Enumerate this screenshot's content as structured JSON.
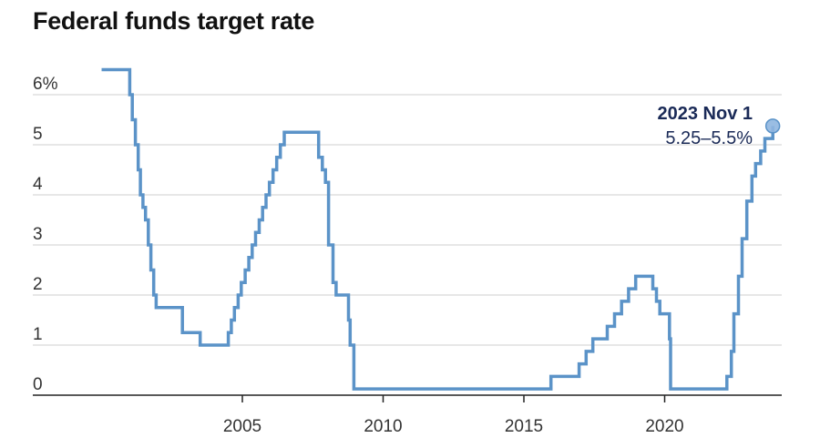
{
  "chart_data": {
    "type": "line",
    "title": "Federal funds target rate",
    "xlabel": "",
    "ylabel": "",
    "xlim": [
      1999.8,
      2024.5
    ],
    "ylim": [
      0,
      6.5
    ],
    "x_ticks": [
      2005,
      2010,
      2015,
      2020
    ],
    "x_tick_labels": [
      "2005",
      "2010",
      "2015",
      "2020"
    ],
    "y_ticks": [
      0,
      1,
      2,
      3,
      4,
      5,
      6
    ],
    "y_tick_labels": [
      "0",
      "1",
      "2",
      "3",
      "4",
      "5",
      "6%"
    ],
    "grid": true,
    "line_color": "#5b93c8",
    "series": [
      {
        "x": [
          2000.0,
          2001.0,
          2001.09,
          2001.2,
          2001.3,
          2001.38,
          2001.47,
          2001.56,
          2001.66,
          2001.75,
          2001.85,
          2001.94,
          2002.87,
          2003.5,
          2004.5,
          2004.61,
          2004.72,
          2004.85,
          2004.96,
          2005.1,
          2005.23,
          2005.35,
          2005.47,
          2005.6,
          2005.72,
          2005.84,
          2005.96,
          2006.09,
          2006.22,
          2006.35,
          2006.49,
          2007.71,
          2007.84,
          2007.95,
          2008.06,
          2008.22,
          2008.33,
          2008.77,
          2008.83,
          2008.96,
          2015.96,
          2016.96,
          2017.21,
          2017.45,
          2017.96,
          2018.22,
          2018.47,
          2018.72,
          2018.97,
          2019.58,
          2019.71,
          2019.83,
          2020.17,
          2020.21,
          2022.21,
          2022.37,
          2022.46,
          2022.62,
          2022.75,
          2022.92,
          2023.1,
          2023.23,
          2023.41,
          2023.56,
          2023.84
        ],
        "y": [
          6.5,
          6.0,
          5.5,
          5.0,
          4.5,
          4.0,
          3.75,
          3.5,
          3.0,
          2.5,
          2.0,
          1.75,
          1.25,
          1.0,
          1.25,
          1.5,
          1.75,
          2.0,
          2.25,
          2.5,
          2.75,
          3.0,
          3.25,
          3.5,
          3.75,
          4.0,
          4.25,
          4.5,
          4.75,
          5.0,
          5.25,
          4.75,
          4.5,
          4.25,
          3.0,
          2.25,
          2.0,
          1.5,
          1.0,
          0.125,
          0.375,
          0.625,
          0.875,
          1.125,
          1.375,
          1.625,
          1.875,
          2.125,
          2.375,
          2.125,
          1.875,
          1.625,
          1.125,
          0.125,
          0.375,
          0.875,
          1.625,
          2.375,
          3.125,
          3.875,
          4.375,
          4.625,
          4.875,
          5.125,
          5.375
        ]
      }
    ],
    "annotation": {
      "date_label": "2023 Nov 1",
      "value_label": "5.25–5.5%",
      "x": 2023.84,
      "y": 5.375,
      "marker_color": "#8fb6e0"
    }
  }
}
